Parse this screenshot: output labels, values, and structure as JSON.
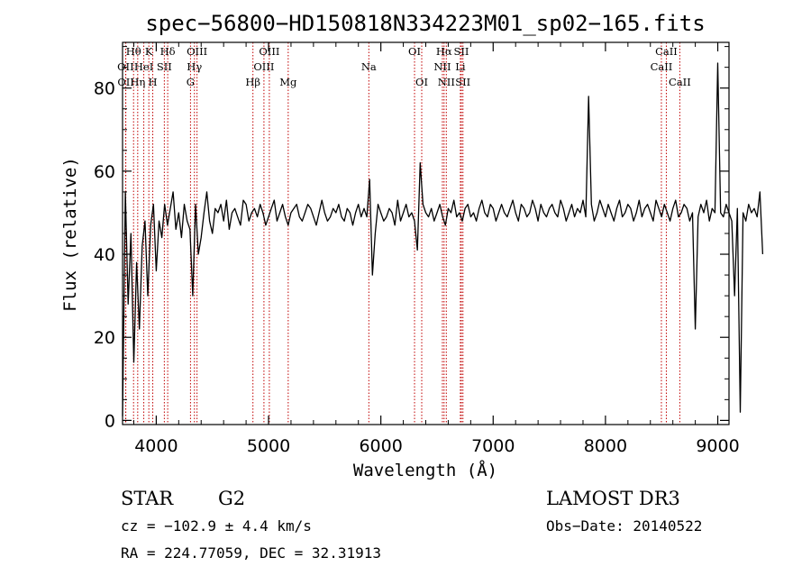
{
  "chart_data": {
    "type": "line",
    "title": "spec−56800−HD150818N334223M01_sp02−165.fits",
    "xlabel": "Wavelength (Å)",
    "ylabel": "Flux (relative)",
    "xlim": [
      3700,
      9100
    ],
    "ylim": [
      -1,
      91
    ],
    "xticks": [
      4000,
      5000,
      6000,
      7000,
      8000,
      9000
    ],
    "yticks": [
      0,
      20,
      40,
      60,
      80
    ],
    "colors": {
      "line": "#000000",
      "marker": "#c00000",
      "axes": "#000000"
    },
    "spectral_lines": [
      {
        "label": "Hθ",
        "wavelength": 3798,
        "row": 0
      },
      {
        "label": "K",
        "wavelength": 3934,
        "row": 0
      },
      {
        "label": "Hδ",
        "wavelength": 4102,
        "row": 0
      },
      {
        "label": "OIII",
        "wavelength": 4363,
        "row": 0
      },
      {
        "label": "OIII",
        "wavelength": 5007,
        "row": 0
      },
      {
        "label": "OI",
        "wavelength": 6300,
        "row": 0
      },
      {
        "label": "Hα",
        "wavelength": 6563,
        "row": 0
      },
      {
        "label": "SII",
        "wavelength": 6717,
        "row": 0
      },
      {
        "label": "CaII",
        "wavelength": 8542,
        "row": 0
      },
      {
        "label": "OII",
        "wavelength": 3727,
        "row": 1
      },
      {
        "label": "HeI",
        "wavelength": 3889,
        "row": 1
      },
      {
        "label": "SII",
        "wavelength": 4072,
        "row": 1
      },
      {
        "label": "Hγ",
        "wavelength": 4340,
        "row": 1
      },
      {
        "label": "OIII",
        "wavelength": 4959,
        "row": 1
      },
      {
        "label": "Na",
        "wavelength": 5893,
        "row": 1
      },
      {
        "label": "NII",
        "wavelength": 6548,
        "row": 1
      },
      {
        "label": "Li",
        "wavelength": 6708,
        "row": 1
      },
      {
        "label": "CaII",
        "wavelength": 8498,
        "row": 1
      },
      {
        "label": "OII",
        "wavelength": 3729,
        "row": 2
      },
      {
        "label": "Hη",
        "wavelength": 3835,
        "row": 2
      },
      {
        "label": "H",
        "wavelength": 3969,
        "row": 2
      },
      {
        "label": "G",
        "wavelength": 4305,
        "row": 2
      },
      {
        "label": "Hβ",
        "wavelength": 4861,
        "row": 2
      },
      {
        "label": "Mg",
        "wavelength": 5175,
        "row": 2
      },
      {
        "label": "OI",
        "wavelength": 6364,
        "row": 2
      },
      {
        "label": "NII",
        "wavelength": 6583,
        "row": 2
      },
      {
        "label": "SII",
        "wavelength": 6731,
        "row": 2
      },
      {
        "label": "CaII",
        "wavelength": 8662,
        "row": 2
      }
    ],
    "spectrum": {
      "x_start": 3700,
      "x_step": 25,
      "flux": [
        1,
        55,
        28,
        45,
        14,
        38,
        22,
        42,
        48,
        30,
        47,
        52,
        36,
        48,
        44,
        52,
        47,
        51,
        55,
        46,
        50,
        44,
        52,
        48,
        46,
        30,
        52,
        40,
        44,
        50,
        55,
        48,
        45,
        51,
        50,
        52,
        48,
        53,
        46,
        50,
        51,
        49,
        47,
        53,
        52,
        48,
        50,
        51,
        49,
        52,
        50,
        47,
        49,
        51,
        53,
        48,
        50,
        52,
        49,
        47,
        50,
        51,
        52,
        49,
        48,
        50,
        52,
        51,
        49,
        47,
        50,
        53,
        50,
        48,
        49,
        51,
        50,
        52,
        49,
        48,
        51,
        50,
        47,
        50,
        52,
        49,
        51,
        49,
        58,
        35,
        45,
        52,
        50,
        48,
        49,
        51,
        50,
        47,
        53,
        48,
        50,
        52,
        49,
        50,
        48,
        41,
        62,
        52,
        50,
        49,
        51,
        48,
        50,
        52,
        49,
        47,
        51,
        50,
        53,
        49,
        50,
        48,
        51,
        52,
        49,
        50,
        48,
        51,
        53,
        50,
        49,
        52,
        51,
        48,
        50,
        52,
        50,
        49,
        51,
        53,
        50,
        48,
        52,
        51,
        49,
        50,
        53,
        51,
        48,
        52,
        50,
        49,
        51,
        52,
        50,
        49,
        53,
        51,
        48,
        50,
        52,
        49,
        51,
        50,
        53,
        49,
        78,
        52,
        48,
        50,
        53,
        51,
        49,
        52,
        50,
        48,
        51,
        53,
        49,
        50,
        52,
        51,
        48,
        50,
        53,
        49,
        51,
        52,
        50,
        48,
        53,
        51,
        49,
        52,
        50,
        48,
        51,
        53,
        49,
        50,
        52,
        51,
        48,
        50,
        22,
        49,
        52,
        50,
        53,
        48,
        51,
        50,
        86,
        50,
        49,
        52,
        50,
        48,
        30,
        51,
        2,
        50,
        48,
        52,
        50,
        51,
        49,
        55,
        40
      ]
    }
  },
  "info": {
    "class_label": "STAR",
    "subclass": "G2",
    "survey": "LAMOST DR3",
    "redshift": "cz = −102.9 ± 4.4 km/s",
    "obs_date": "Obs−Date: 20140522",
    "coords": "RA = 224.77059, DEC =  32.31913"
  }
}
